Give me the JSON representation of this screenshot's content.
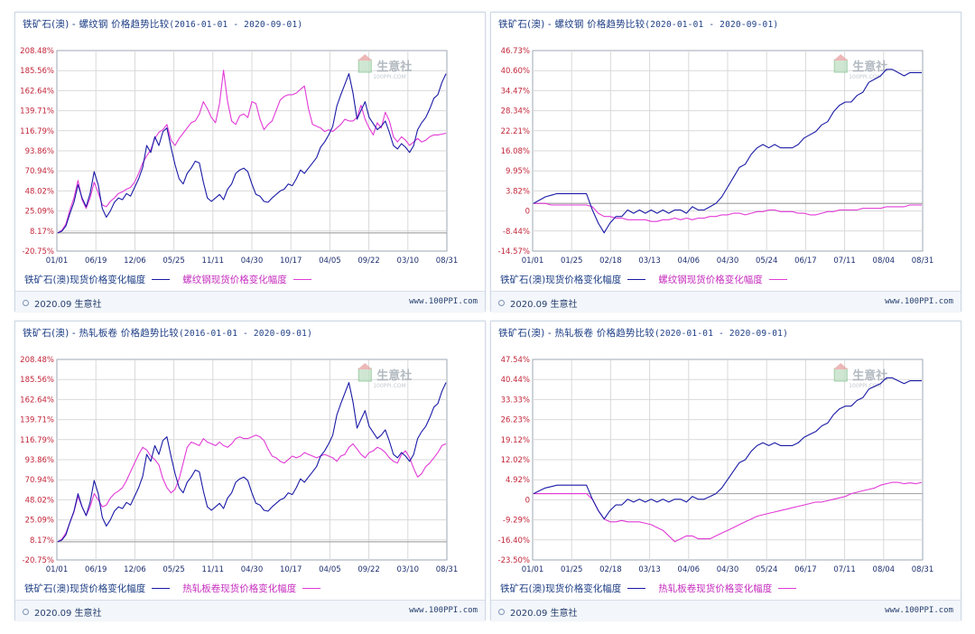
{
  "brand": {
    "copyright": "2020.09 生意社",
    "site": "www.100PPI.com",
    "watermark": "生意社",
    "watermark_sub": "100PPI.COM"
  },
  "colors": {
    "series_a": "#1a1aa6",
    "series_b": "#e23ad6",
    "grid": "#d9d9d9",
    "zero_line": "#a9a9a9"
  },
  "chart_data": [
    {
      "type": "line",
      "title": "铁矿石(澳) - 螺纹钢 价格趋势比较",
      "date_range": "(2016-01-01 - 2020-09-01)",
      "x_ticks": [
        "01/01",
        "06/19",
        "12/06",
        "05/25",
        "11/11",
        "04/30",
        "10/17",
        "04/05",
        "09/22",
        "03/10",
        "08/31"
      ],
      "y_ticks": [
        "208.48%",
        "185.56%",
        "162.64%",
        "139.71%",
        "116.79%",
        "93.86%",
        "70.94%",
        "48.02%",
        "25.09%",
        "8.17%",
        "-20.75%"
      ],
      "ylim": [
        -20.75,
        208.48
      ],
      "zero_line": 0,
      "series": [
        {
          "name": "铁矿石(澳)现货价格变化幅度",
          "color": "#1a1aa6",
          "values": [
            0,
            2,
            8,
            22,
            35,
            55,
            40,
            30,
            45,
            70,
            55,
            28,
            18,
            25,
            35,
            40,
            38,
            45,
            42,
            52,
            62,
            75,
            100,
            92,
            110,
            100,
            116,
            120,
            98,
            78,
            62,
            56,
            68,
            74,
            82,
            80,
            58,
            40,
            36,
            40,
            44,
            38,
            50,
            56,
            68,
            72,
            74,
            70,
            56,
            44,
            42,
            36,
            35,
            40,
            44,
            48,
            50,
            56,
            54,
            62,
            72,
            68,
            74,
            80,
            86,
            98,
            104,
            112,
            122,
            145,
            158,
            170,
            182,
            160,
            130,
            140,
            150,
            132,
            125,
            118,
            122,
            128,
            115,
            100,
            96,
            102,
            98,
            92,
            100,
            118,
            126,
            132,
            142,
            154,
            158,
            172,
            182
          ]
        },
        {
          "name": "螺纹钢现货价格变化幅度",
          "color": "#e23ad6",
          "values": [
            0,
            3,
            10,
            26,
            40,
            60,
            38,
            28,
            40,
            58,
            46,
            32,
            30,
            36,
            40,
            45,
            47,
            50,
            52,
            58,
            68,
            80,
            88,
            95,
            108,
            115,
            118,
            124,
            106,
            100,
            108,
            114,
            120,
            126,
            128,
            136,
            150,
            142,
            132,
            126,
            148,
            186,
            150,
            128,
            124,
            134,
            136,
            132,
            150,
            148,
            130,
            118,
            124,
            128,
            140,
            152,
            156,
            158,
            158,
            160,
            164,
            168,
            142,
            124,
            122,
            120,
            116,
            118,
            116,
            120,
            124,
            130,
            128,
            128,
            132,
            146,
            130,
            120,
            112,
            126,
            120,
            138,
            128,
            110,
            104,
            110,
            106,
            100,
            104,
            108,
            104,
            106,
            110,
            112,
            112,
            113,
            114
          ]
        }
      ]
    },
    {
      "type": "line",
      "title": "铁矿石(澳) - 螺纹钢 价格趋势比较",
      "date_range": "(2020-01-01 - 2020-09-01)",
      "x_ticks": [
        "01/01",
        "01/25",
        "02/18",
        "03/13",
        "04/06",
        "04/30",
        "05/24",
        "06/17",
        "07/11",
        "08/04",
        "08/31"
      ],
      "y_ticks": [
        "46.73%",
        "40.60%",
        "34.47%",
        "28.34%",
        "22.21%",
        "16.08%",
        "9.95%",
        "3.82%",
        "0",
        "-8.44%",
        "-14.57%"
      ],
      "ylim": [
        -14.57,
        46.73
      ],
      "zero_line": 0,
      "series": [
        {
          "name": "铁矿石(澳)现货价格变化幅度",
          "color": "#1a1aa6",
          "values": [
            0,
            1,
            2,
            2.5,
            3,
            3,
            3,
            3,
            3,
            3,
            -2,
            -6,
            -9,
            -6,
            -4,
            -4,
            -2,
            -3,
            -2,
            -3,
            -2,
            -3,
            -2,
            -3,
            -2,
            -2,
            -3,
            -1,
            -2,
            -2,
            -1,
            0,
            2,
            5,
            8,
            11,
            12,
            15,
            17,
            18,
            17,
            18,
            17,
            17,
            17,
            18,
            20,
            21,
            22,
            24,
            25,
            28,
            30,
            31,
            31,
            33,
            34,
            37,
            38,
            39,
            41,
            41,
            40,
            39,
            40,
            40,
            40
          ]
        },
        {
          "name": "螺纹钢现货价格变化幅度",
          "color": "#e23ad6",
          "values": [
            0,
            0,
            0,
            -0.5,
            -0.5,
            -0.5,
            -0.5,
            -0.5,
            -0.5,
            -0.5,
            -1,
            -3,
            -4,
            -4,
            -4.5,
            -4.5,
            -5,
            -5,
            -5,
            -5,
            -5.5,
            -5.5,
            -5,
            -5,
            -4.5,
            -5,
            -4.5,
            -5,
            -4.5,
            -4.5,
            -4,
            -4,
            -3.5,
            -3.5,
            -3,
            -3,
            -3.5,
            -3,
            -2.5,
            -2.5,
            -2,
            -2,
            -2.5,
            -2.5,
            -2.5,
            -3,
            -3,
            -3.5,
            -3.5,
            -3,
            -2.5,
            -2.5,
            -2,
            -2,
            -2,
            -2,
            -1.5,
            -1.5,
            -1.5,
            -1.5,
            -1,
            -1,
            -1,
            -1,
            -0.5,
            -0.5,
            -0.5
          ]
        }
      ]
    },
    {
      "type": "line",
      "title": "铁矿石(澳) - 热轧板卷 价格趋势比较",
      "date_range": "(2016-01-01 - 2020-09-01)",
      "x_ticks": [
        "01/01",
        "06/19",
        "12/06",
        "05/25",
        "11/11",
        "04/30",
        "10/17",
        "04/05",
        "09/22",
        "03/10",
        "08/31"
      ],
      "y_ticks": [
        "208.48%",
        "185.56%",
        "162.64%",
        "139.71%",
        "116.79%",
        "93.86%",
        "70.94%",
        "48.02%",
        "25.09%",
        "8.17%",
        "-20.75%"
      ],
      "ylim": [
        -20.75,
        208.48
      ],
      "zero_line": 0,
      "series": [
        {
          "name": "铁矿石(澳)现货价格变化幅度",
          "color": "#1a1aa6",
          "values": [
            0,
            2,
            8,
            22,
            35,
            55,
            40,
            30,
            45,
            70,
            55,
            28,
            18,
            25,
            35,
            40,
            38,
            45,
            42,
            52,
            62,
            75,
            100,
            92,
            110,
            100,
            116,
            120,
            98,
            78,
            62,
            56,
            68,
            74,
            82,
            80,
            58,
            40,
            36,
            40,
            44,
            38,
            50,
            56,
            68,
            72,
            74,
            70,
            56,
            44,
            42,
            36,
            35,
            40,
            44,
            48,
            50,
            56,
            54,
            62,
            72,
            68,
            74,
            80,
            86,
            98,
            104,
            112,
            122,
            145,
            158,
            170,
            182,
            160,
            130,
            140,
            150,
            132,
            125,
            118,
            122,
            128,
            115,
            100,
            96,
            102,
            98,
            92,
            100,
            118,
            126,
            132,
            142,
            154,
            158,
            172,
            182
          ]
        },
        {
          "name": "热轧板卷现货价格变化幅度",
          "color": "#e23ad6",
          "values": [
            0,
            3,
            10,
            22,
            34,
            52,
            40,
            30,
            40,
            55,
            48,
            40,
            42,
            50,
            55,
            58,
            62,
            70,
            80,
            90,
            100,
            108,
            105,
            98,
            94,
            88,
            72,
            62,
            56,
            60,
            72,
            90,
            108,
            114,
            112,
            110,
            118,
            114,
            112,
            110,
            114,
            110,
            108,
            112,
            118,
            120,
            118,
            118,
            120,
            122,
            120,
            116,
            106,
            98,
            96,
            92,
            90,
            94,
            98,
            96,
            98,
            102,
            100,
            98,
            96,
            98,
            100,
            98,
            96,
            92,
            98,
            100,
            108,
            112,
            106,
            100,
            96,
            102,
            104,
            108,
            106,
            102,
            96,
            92,
            90,
            100,
            104,
            96,
            84,
            74,
            78,
            86,
            90,
            96,
            102,
            110,
            112
          ]
        }
      ]
    },
    {
      "type": "line",
      "title": "铁矿石(澳) - 热轧板卷 价格趋势比较",
      "date_range": "(2020-01-01 - 2020-09-01)",
      "x_ticks": [
        "01/01",
        "01/25",
        "02/18",
        "03/13",
        "04/06",
        "04/30",
        "05/24",
        "06/17",
        "07/11",
        "08/04",
        "08/31"
      ],
      "y_ticks": [
        "47.54%",
        "40.44%",
        "33.33%",
        "26.23%",
        "19.12%",
        "12.02%",
        "4.92%",
        "0",
        "-9.29%",
        "-16.40%",
        "-23.50%"
      ],
      "ylim": [
        -23.5,
        47.54
      ],
      "zero_line": 0,
      "series": [
        {
          "name": "铁矿石(澳)现货价格变化幅度",
          "color": "#1a1aa6",
          "values": [
            0,
            1,
            2,
            2.5,
            3,
            3,
            3,
            3,
            3,
            3,
            -2,
            -6,
            -9,
            -6,
            -4,
            -4,
            -2,
            -3,
            -2,
            -3,
            -2,
            -3,
            -2,
            -3,
            -2,
            -2,
            -3,
            -1,
            -2,
            -2,
            -1,
            0,
            2,
            5,
            8,
            11,
            12,
            15,
            17,
            18,
            17,
            18,
            17,
            17,
            17,
            18,
            20,
            21,
            22,
            24,
            25,
            28,
            30,
            31,
            31,
            33,
            34,
            37,
            38,
            39,
            41,
            41,
            40,
            39,
            40,
            40,
            40
          ]
        },
        {
          "name": "热轧板卷现货价格变化幅度",
          "color": "#e23ad6",
          "values": [
            0,
            0,
            0,
            0,
            0,
            0,
            0,
            0,
            0,
            0,
            -2,
            -6,
            -9,
            -10,
            -10,
            -9.5,
            -10,
            -10,
            -10,
            -10.5,
            -11,
            -12,
            -13,
            -15,
            -17,
            -16,
            -15,
            -15,
            -16,
            -16,
            -16,
            -15,
            -14,
            -13,
            -12,
            -11,
            -10,
            -9,
            -8,
            -7.5,
            -7,
            -6.5,
            -6,
            -5.5,
            -5,
            -4.5,
            -4,
            -3.5,
            -3,
            -3,
            -2.5,
            -2,
            -1.5,
            -1,
            0,
            0.5,
            1,
            1.5,
            2,
            3,
            3.5,
            4,
            4,
            3.5,
            3.8,
            3.5,
            4
          ]
        }
      ]
    }
  ]
}
